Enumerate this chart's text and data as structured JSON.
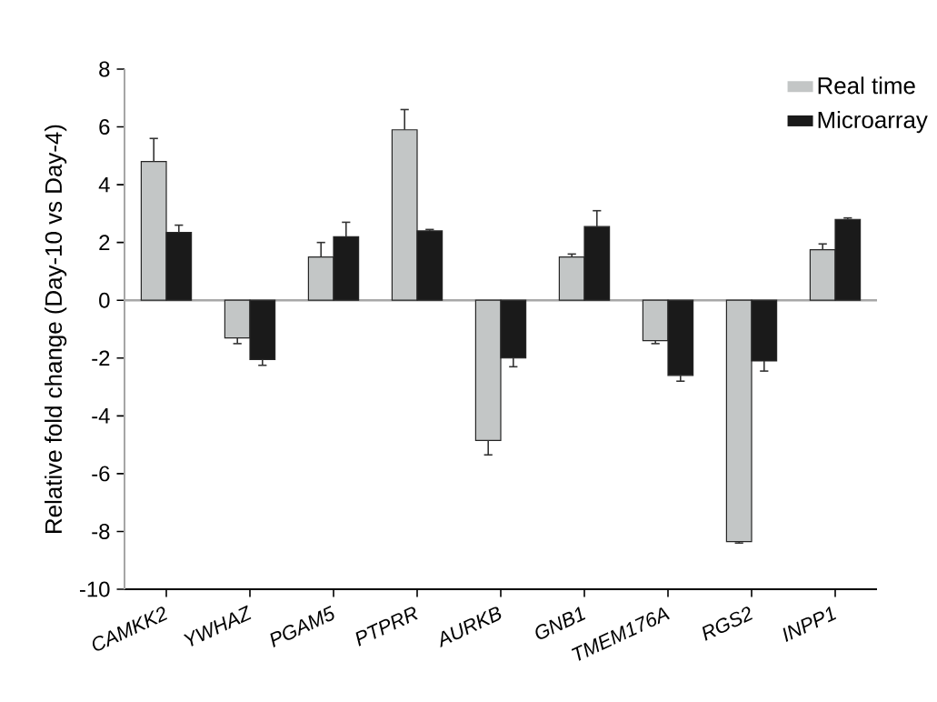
{
  "chart_data": {
    "type": "bar",
    "ylabel": "Relative fold change (Day-10 vs Day-4)",
    "categories": [
      "CAMKK2",
      "YWHAZ",
      "PGAM5",
      "PTPRR",
      "AURKB",
      "GNB1",
      "TMEM176A",
      "RGS2",
      "INPP1"
    ],
    "series": [
      {
        "name": "Real time",
        "color": "#c3c6c6",
        "values": [
          4.8,
          -1.3,
          1.5,
          5.9,
          -4.85,
          1.5,
          -1.4,
          -8.35,
          1.75
        ],
        "errors": [
          [
            4.8,
            5.6
          ],
          [
            -1.5,
            -1.3
          ],
          [
            1.5,
            2.0
          ],
          [
            5.9,
            6.6
          ],
          [
            -5.35,
            -4.85
          ],
          [
            1.5,
            1.6
          ],
          [
            -1.5,
            -1.4
          ],
          [
            -8.4,
            -8.35
          ],
          [
            1.75,
            1.95
          ]
        ]
      },
      {
        "name": "Microarray",
        "color": "#1a1a1a",
        "values": [
          2.35,
          -2.05,
          2.2,
          2.4,
          -2.0,
          2.55,
          -2.6,
          -2.1,
          2.8
        ],
        "errors": [
          [
            2.35,
            2.6
          ],
          [
            -2.25,
            -2.05
          ],
          [
            2.2,
            2.7
          ],
          [
            2.4,
            2.45
          ],
          [
            -2.3,
            -2.0
          ],
          [
            2.55,
            3.1
          ],
          [
            -2.8,
            -2.6
          ],
          [
            -2.45,
            -2.1
          ],
          [
            2.8,
            2.85
          ]
        ]
      }
    ],
    "ylim": [
      -10,
      8
    ],
    "yticks": [
      -10,
      -8,
      -6,
      -4,
      -2,
      0,
      2,
      4,
      6,
      8
    ],
    "ref_lines": [
      {
        "axis": "y",
        "value": 0,
        "color": "#a8a8a8"
      }
    ],
    "legend": "top right",
    "grid": false
  }
}
